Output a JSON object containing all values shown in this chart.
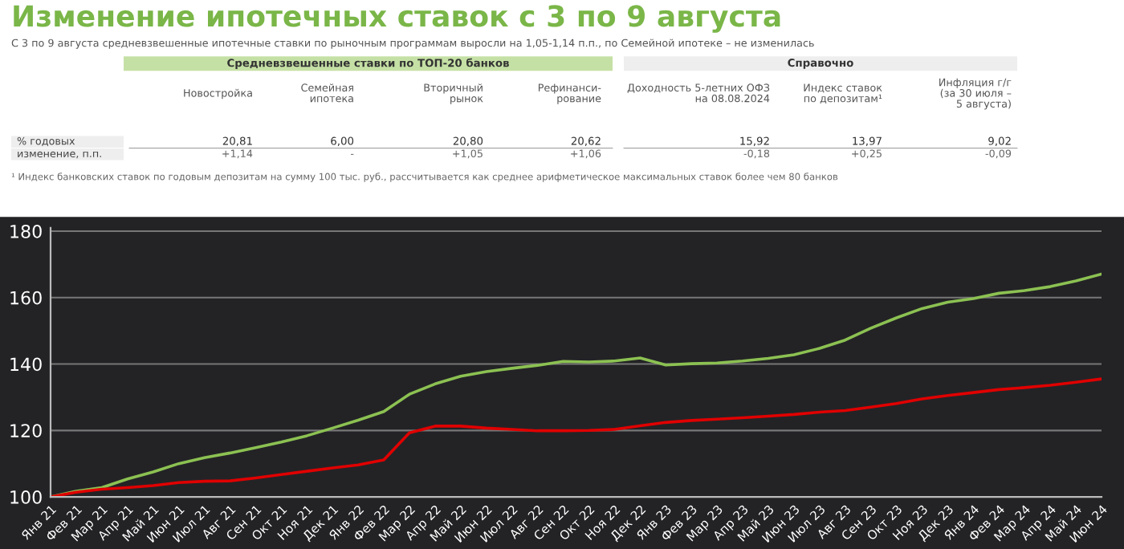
{
  "chart_data": [
    {
      "type": "other",
      "title": "Изменение ипотечных ставок с 3 по 9 августа",
      "subtitle": "С 3 по 9 августа средневзвешенные ипотечные ставки по рыночным программам выросли на 1,05-1,14 п.п., по Семейной ипотеке – не изменилась",
      "categories": [
        "Новостройка",
        "Семейная\nипотека",
        "Вторичный\nрынок",
        "Рефинанси-\nрование",
        "Доходность 5-летних ОФЗ\nна 08.08.2024",
        "Индекс ставок\nпо депозитам¹",
        "Инфляция г/г\n(за 30 июля –\n5 августа)"
      ],
      "y_categories": [
        "% годовых",
        "изменение, п.п."
      ],
      "cell_labels": [
        [
          "20,81",
          "6,00",
          "20,80",
          "20,62",
          "15,92",
          "13,97",
          "9,02"
        ],
        [
          "+1,14",
          "-",
          "+1,05",
          "+1,06",
          "-0,18",
          "+0,25",
          "-0,09"
        ]
      ],
      "annotations": [
        "Средневзвешенные ставки по ТОП-20 банков",
        "Справочно",
        "¹ Индекс банковских ставок по годовым депозитам на сумму 100 тыс. руб., рассчитывается как среднее арифметическое максимальных ставок более чем 80 банков"
      ]
    },
    {
      "type": "line",
      "categories": [
        "Янв 21",
        "Фев 21",
        "Мар 21",
        "Апр 21",
        "Май 21",
        "Июн 21",
        "Июл 21",
        "Авг 21",
        "Сен 21",
        "Окт 21",
        "Ноя 21",
        "Дек 21",
        "Янв 22",
        "Фев 22",
        "Мар 22",
        "Апр 22",
        "Май 22",
        "Июн 22",
        "Июл 22",
        "Авг 22",
        "Сен 22",
        "Окт 22",
        "Ноя 22",
        "Дек 22",
        "Янв 23",
        "Фев 23",
        "Мар 23",
        "Апр 23",
        "Май 23",
        "Июн 23",
        "Июл 23",
        "Авг 23",
        "Сен 23",
        "Окт 23",
        "Ноя 23",
        "Дек 23",
        "Янв 24",
        "Фев 24",
        "Мар 24",
        "Апр 24",
        "Май 24",
        "Июн 24"
      ],
      "series": [
        {
          "color": "#8cc152",
          "values": [
            100,
            101.7,
            102.8,
            105.4,
            107.5,
            110,
            111.8,
            113.2,
            114.8,
            116.5,
            118.4,
            120.7,
            123.1,
            125.7,
            130.9,
            134,
            136.3,
            137.7,
            138.7,
            139.6,
            140.8,
            140.6,
            140.9,
            141.8,
            139.7,
            140.1,
            140.3,
            140.9,
            141.7,
            142.8,
            144.7,
            147.2,
            150.8,
            153.9,
            156.7,
            158.6,
            159.7,
            161.3,
            162.1,
            163.3,
            165,
            167.1
          ]
        },
        {
          "color": "#e00000",
          "values": [
            100,
            101.4,
            102.3,
            102.8,
            103.4,
            104.3,
            104.7,
            104.8,
            105.7,
            106.7,
            107.7,
            108.7,
            109.6,
            111.1,
            119.3,
            121.3,
            121.3,
            120.7,
            120.3,
            119.9,
            119.9,
            120,
            120.3,
            121.4,
            122.4,
            123,
            123.4,
            123.8,
            124.3,
            124.8,
            125.5,
            126,
            127,
            128.1,
            129.5,
            130.5,
            131.4,
            132.3,
            132.9,
            133.6,
            134.5,
            135.5
          ]
        }
      ],
      "ylim": [
        100,
        181
      ],
      "yticks": [
        100,
        120,
        140,
        160,
        180
      ],
      "grid": "y",
      "legend": false
    }
  ]
}
